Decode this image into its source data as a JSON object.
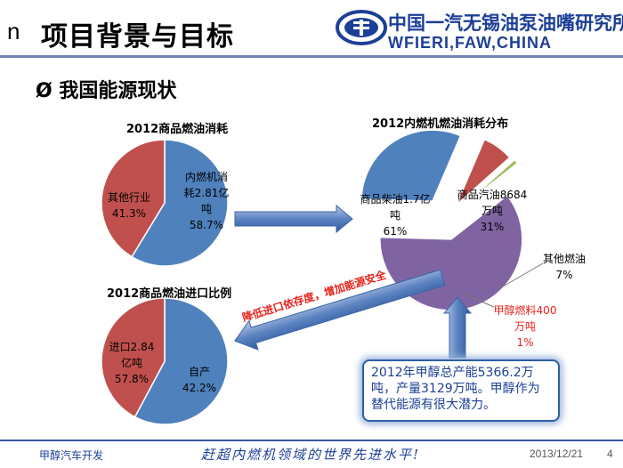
{
  "header": {
    "bullet": "n",
    "title": "项目背景与目标",
    "logo_cn": "中国一汽无锡油泵油嘴研究所",
    "logo_en": "WFIERI,FAW,CHINA"
  },
  "section": {
    "bullet": "Ø",
    "title": "我国能源现状"
  },
  "colors": {
    "blue": "#4f81bd",
    "red": "#c0504d",
    "purple": "#8064a2",
    "green": "#9bbb59",
    "accent_text": "#1c3f97",
    "red_text": "#e8231c"
  },
  "chart_data": [
    {
      "type": "pie",
      "title": "2012商品燃油消耗",
      "slices": [
        {
          "label": "内燃机消耗2.81亿吨",
          "label_lines": [
            "内燃机消",
            "耗2.81亿",
            "吨"
          ],
          "pct_label": "58.7%",
          "value": 58.7,
          "color": "#4f81bd"
        },
        {
          "label": "其他行业",
          "label_lines": [
            "其他行业"
          ],
          "pct_label": "41.3%",
          "value": 41.3,
          "color": "#c0504d"
        }
      ]
    },
    {
      "type": "pie",
      "title": "2012内燃机燃油消耗分布",
      "slices": [
        {
          "label": "商品柴油1.7亿吨",
          "label_lines": [
            "商品柴油1.7亿",
            "吨"
          ],
          "pct_label": "61%",
          "value": 61,
          "color": "#8064a2"
        },
        {
          "label": "商品汽油8684万吨",
          "label_lines": [
            "商品汽油8684",
            "万吨"
          ],
          "pct_label": "31%",
          "value": 31,
          "color": "#4f81bd"
        },
        {
          "label": "其他燃油",
          "label_lines": [
            "其他燃油"
          ],
          "pct_label": "7%",
          "value": 7,
          "color": "#c0504d"
        },
        {
          "label": "甲醇燃料400万吨",
          "label_lines": [
            "甲醇燃料400",
            "万吨"
          ],
          "pct_label": "1%",
          "value": 1,
          "color": "#9bbb59"
        }
      ]
    },
    {
      "type": "pie",
      "title": "2012商品燃油进口比例",
      "slices": [
        {
          "label": "进口2.84亿吨",
          "label_lines": [
            "进口2.84",
            "亿吨"
          ],
          "pct_label": "57.8%",
          "value": 57.8,
          "color": "#4f81bd"
        },
        {
          "label": "自产",
          "label_lines": [
            "自产"
          ],
          "pct_label": "42.2%",
          "value": 42.2,
          "color": "#c0504d"
        }
      ]
    }
  ],
  "arrow_text": "降低进口依存度，增加能源安全",
  "callout": "2012年甲醇总产能5366.2万吨，产量3129万吨。甲醇作为替代能源有很大潜力。",
  "footer": {
    "left": "甲醇汽车开发",
    "slogan": "赶超内燃机领域的世界先进水平!",
    "date": "2013/12/21",
    "page": "4"
  }
}
